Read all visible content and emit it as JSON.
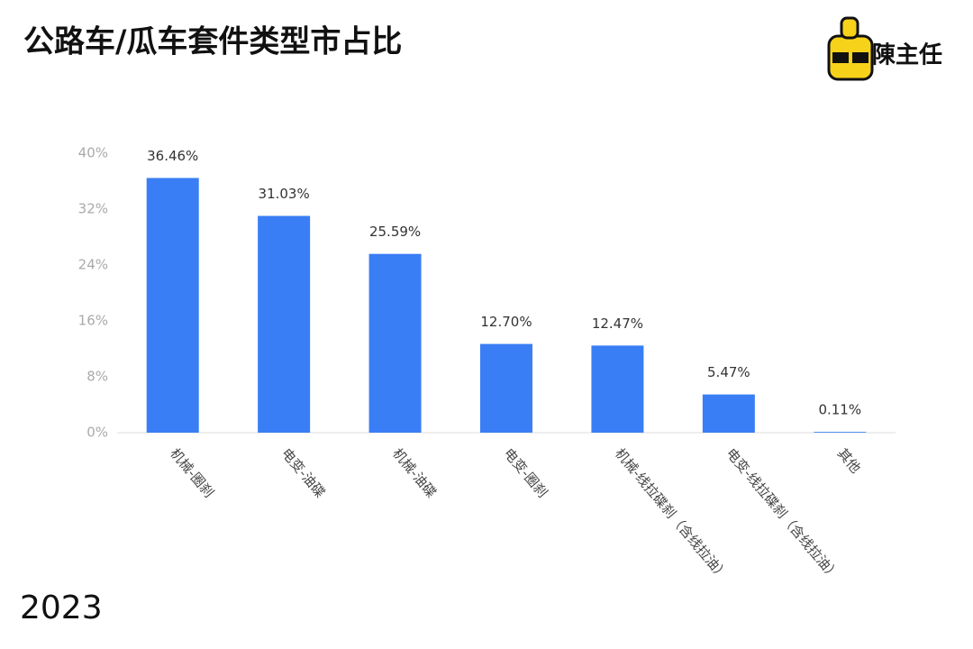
{
  "chart_data": {
    "type": "bar",
    "title": "公路车/瓜车套件类型市占比",
    "categories": [
      "机械-圈刹",
      "电变-油碟",
      "机械-油碟",
      "电变-圈刹",
      "机械-线拉碟刹（含线拉油）",
      "电变-线拉碟刹（含线拉油）",
      "其他"
    ],
    "values": [
      36.46,
      31.03,
      25.59,
      12.7,
      12.47,
      5.47,
      0.11
    ],
    "value_labels": [
      "36.46%",
      "31.03%",
      "25.59%",
      "12.70%",
      "12.47%",
      "5.47%",
      "0.11%"
    ],
    "color": "#3a7ef5",
    "ylim": [
      0,
      40
    ],
    "yticks": [
      {
        "value": 0,
        "label": "0%"
      },
      {
        "value": 8,
        "label": "8%"
      },
      {
        "value": 16,
        "label": "16%"
      },
      {
        "value": 24,
        "label": "24%"
      },
      {
        "value": 32,
        "label": "32%"
      },
      {
        "value": 40,
        "label": "40%"
      }
    ],
    "grid": false,
    "footer": "2023",
    "logo": "陳主任"
  }
}
